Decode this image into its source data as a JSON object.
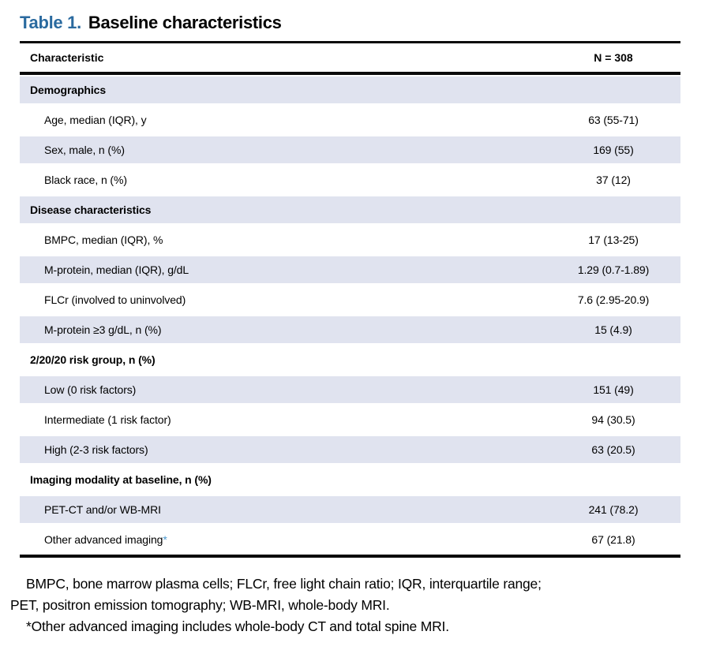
{
  "title": {
    "label": "Table 1.",
    "text": "Baseline characteristics"
  },
  "table": {
    "header": {
      "characteristic": "Characteristic",
      "n": "N = 308"
    },
    "rows": [
      {
        "label": "Demographics",
        "value": "",
        "section": true,
        "shaded": true
      },
      {
        "label": "Age, median (IQR), y",
        "value": "63 (55-71)",
        "section": false,
        "shaded": false
      },
      {
        "label": "Sex, male, n (%)",
        "value": "169 (55)",
        "section": false,
        "shaded": true
      },
      {
        "label": "Black race, n (%)",
        "value": "37 (12)",
        "section": false,
        "shaded": false
      },
      {
        "label": "Disease characteristics",
        "value": "",
        "section": true,
        "shaded": true
      },
      {
        "label": "BMPC, median (IQR), %",
        "value": "17 (13-25)",
        "section": false,
        "shaded": false
      },
      {
        "label": "M-protein, median (IQR), g/dL",
        "value": "1.29 (0.7-1.89)",
        "section": false,
        "shaded": true
      },
      {
        "label": "FLCr (involved to uninvolved)",
        "value": "7.6 (2.95-20.9)",
        "section": false,
        "shaded": false
      },
      {
        "label": "M-protein ≥3 g/dL, n (%)",
        "value": "15 (4.9)",
        "section": false,
        "shaded": true
      },
      {
        "label": "2/20/20 risk group, n (%)",
        "value": "",
        "section": true,
        "shaded": false
      },
      {
        "label": "Low (0 risk factors)",
        "value": "151 (49)",
        "section": false,
        "shaded": true
      },
      {
        "label": "Intermediate (1 risk factor)",
        "value": "94 (30.5)",
        "section": false,
        "shaded": false
      },
      {
        "label": "High (2-3 risk factors)",
        "value": "63 (20.5)",
        "section": false,
        "shaded": true
      },
      {
        "label": "Imaging modality at baseline, n (%)",
        "value": "",
        "section": true,
        "shaded": false
      },
      {
        "label": "PET-CT and/or WB-MRI",
        "value": "241 (78.2)",
        "section": false,
        "shaded": true
      },
      {
        "label": "Other advanced imaging",
        "label_suffix": "*",
        "value": "67 (21.8)",
        "section": false,
        "shaded": false
      }
    ]
  },
  "footnotes": {
    "abbreviations_line1": "BMPC, bone marrow plasma cells; FLCr, free light chain ratio; IQR, interquartile range;",
    "abbreviations_line2": "PET, positron emission tomography; WB-MRI, whole-body MRI.",
    "asterisk_note": "*Other advanced imaging includes whole-body CT and total spine MRI."
  },
  "colors": {
    "row_shaded": "#e0e3ef",
    "title_blue": "#2a6a9f",
    "asterisk_blue": "#4d9acf",
    "rule_black": "#0a0a0a"
  }
}
